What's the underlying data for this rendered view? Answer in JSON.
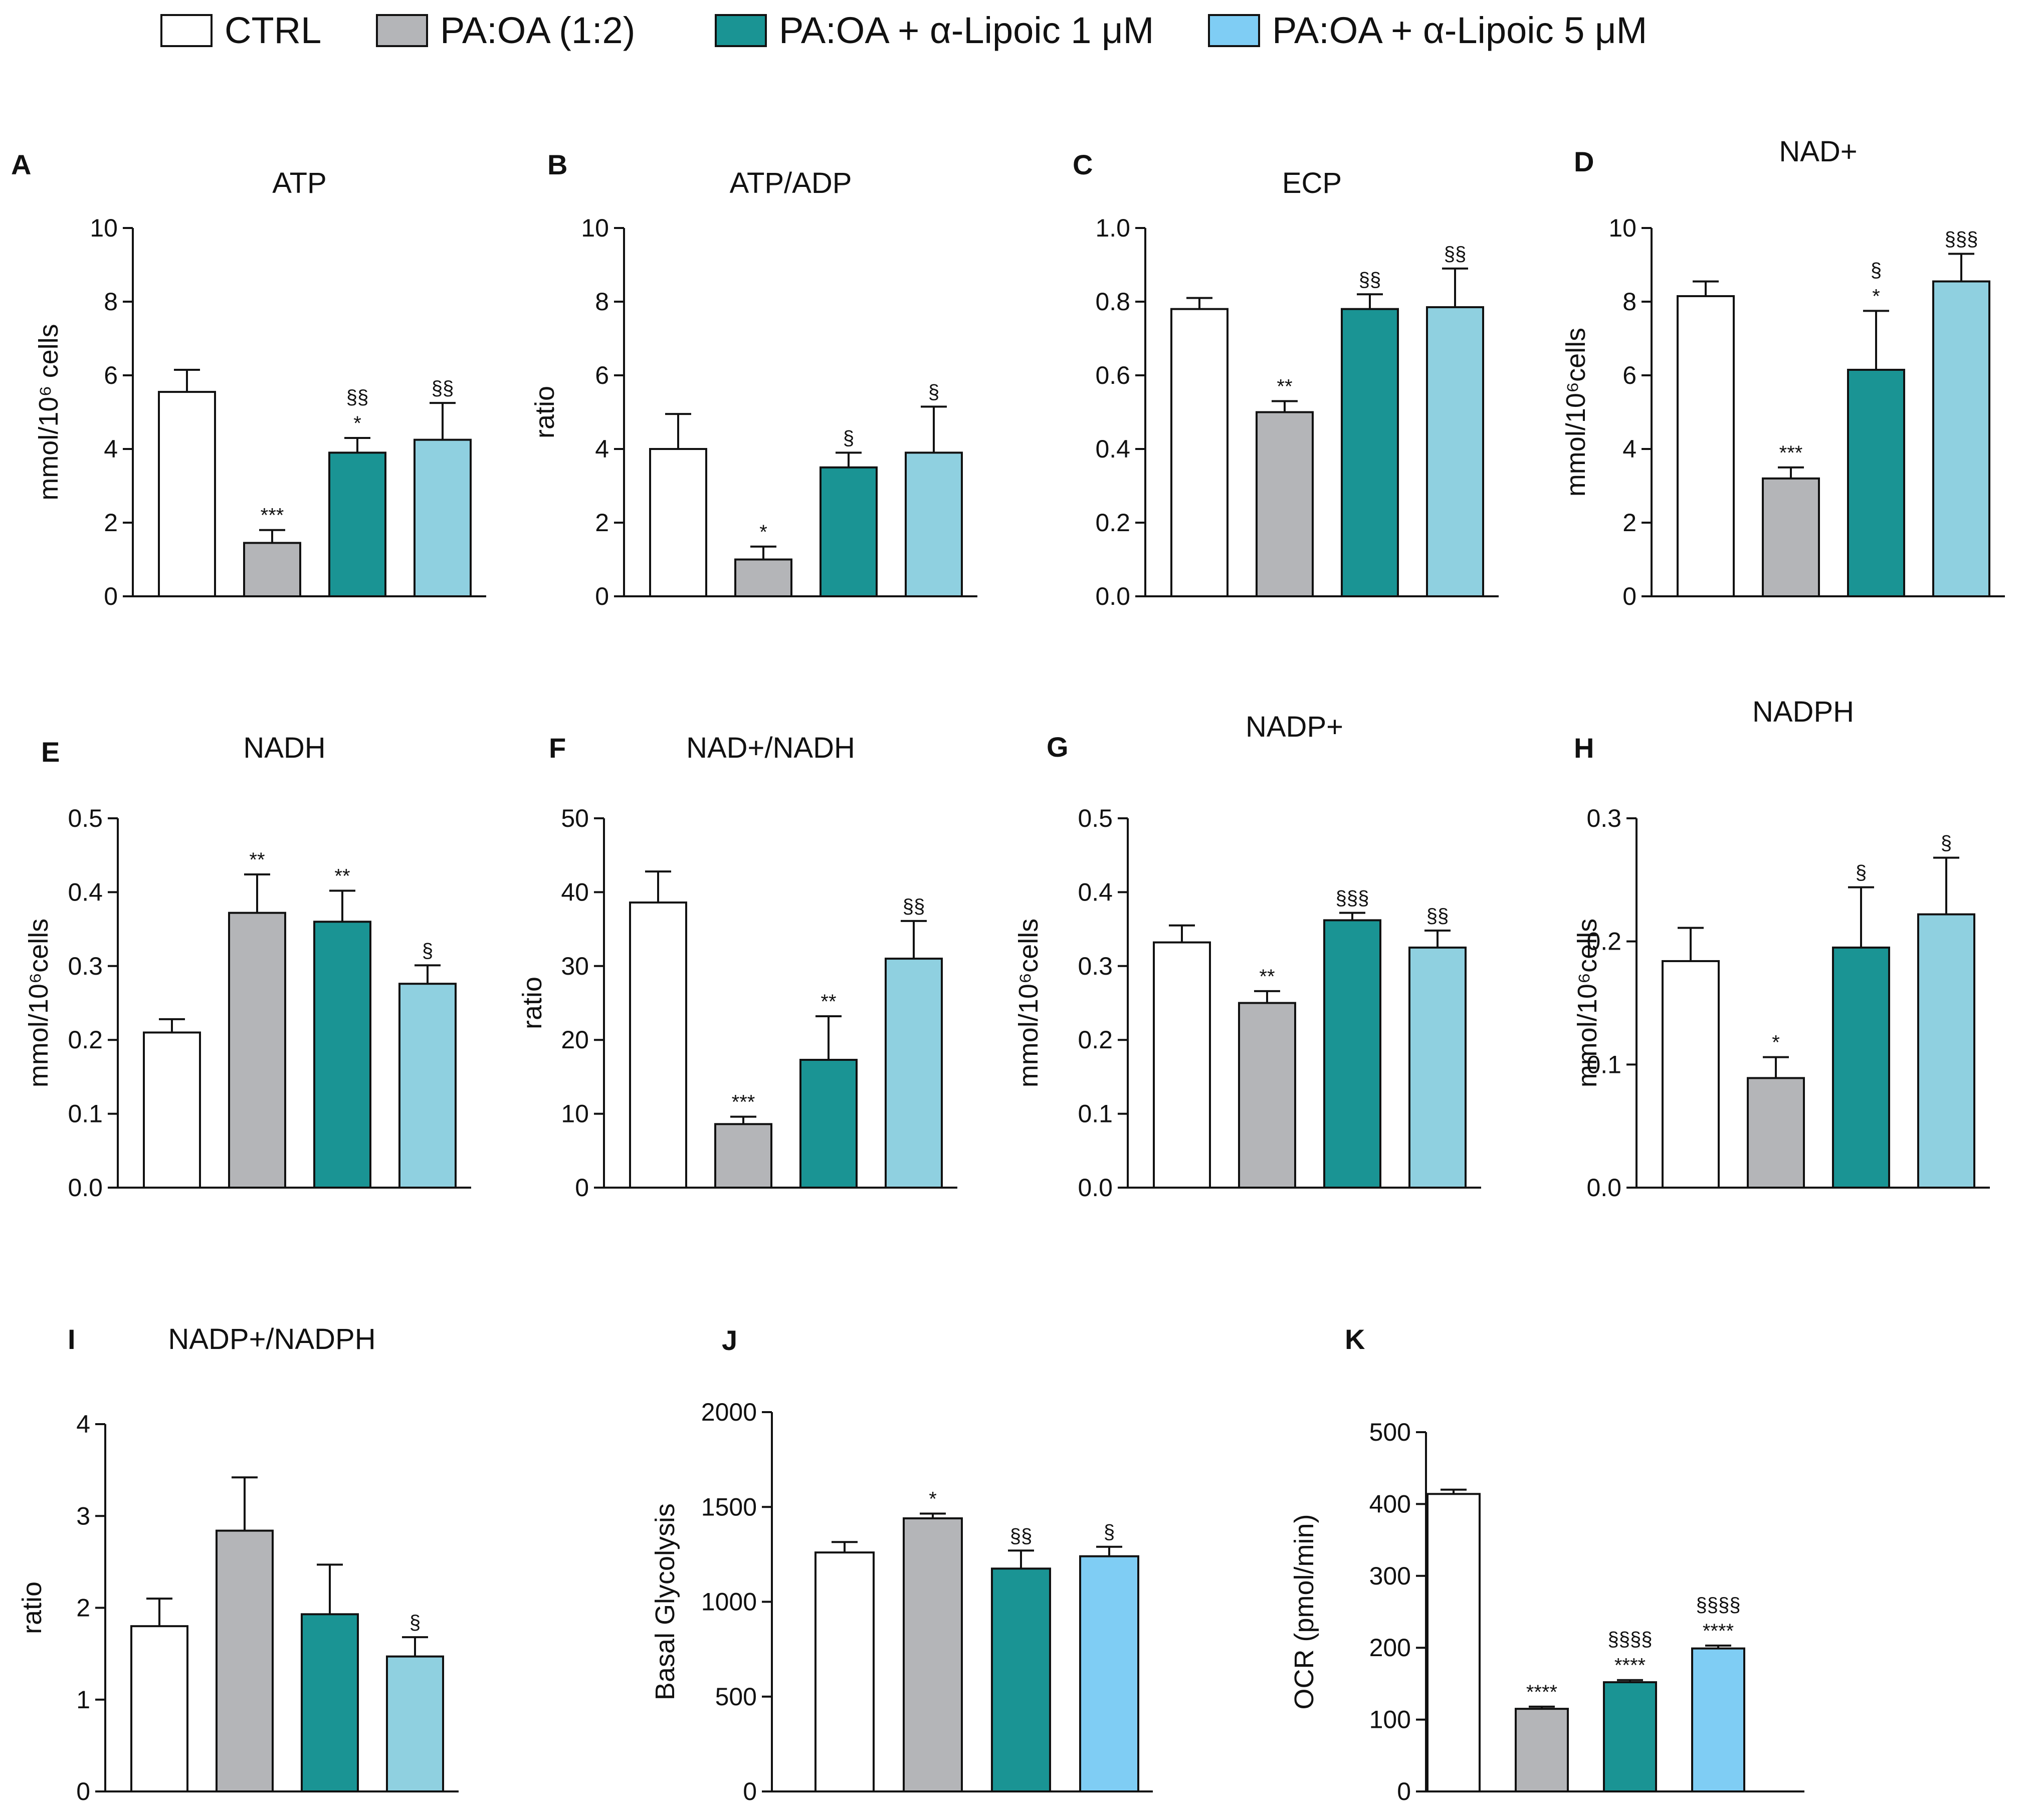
{
  "legend": [
    {
      "label": "CTRL",
      "color": "#ffffff"
    },
    {
      "label": "PA:OA (1:2)",
      "color": "#b4b5b8"
    },
    {
      "label": "PA:OA + α-Lipoic 1 μM",
      "color": "#1a9494"
    },
    {
      "label": "PA:OA + α-Lipoic 5 μM",
      "color": "#7fcdf4"
    }
  ],
  "chart_data": [
    {
      "panel": "A",
      "type": "bar",
      "title": "ATP",
      "ylabel": "mmol/10⁶ cells",
      "ylim": [
        0,
        10
      ],
      "yticks": [
        "0",
        "2",
        "4",
        "6",
        "8",
        "10"
      ],
      "categories": [
        "CTRL",
        "PA:OA (1:2)",
        "PA:OA + α-Lipoic 1 μM",
        "PA:OA + α-Lipoic 5 μM"
      ],
      "values": [
        5.55,
        1.45,
        3.9,
        4.25
      ],
      "errors": [
        0.6,
        0.35,
        0.4,
        1.0
      ],
      "colors": [
        "#ffffff",
        "#b4b5b8",
        "#1a9494",
        "#8fd0e0"
      ],
      "annotations": [
        [],
        [
          "***"
        ],
        [
          "*",
          "§§"
        ],
        [
          "§§"
        ]
      ]
    },
    {
      "panel": "B",
      "type": "bar",
      "title": "ATP/ADP",
      "ylabel": "ratio",
      "ylim": [
        0,
        10
      ],
      "yticks": [
        "0",
        "2",
        "4",
        "6",
        "8",
        "10"
      ],
      "categories": [
        "CTRL",
        "PA:OA (1:2)",
        "PA:OA + α-Lipoic 1 μM",
        "PA:OA + α-Lipoic 5 μM"
      ],
      "values": [
        4.0,
        1.0,
        3.5,
        3.9
      ],
      "errors": [
        0.95,
        0.35,
        0.4,
        1.25
      ],
      "colors": [
        "#ffffff",
        "#b4b5b8",
        "#1a9494",
        "#8fd0e0"
      ],
      "annotations": [
        [],
        [
          "*"
        ],
        [
          "§"
        ],
        [
          "§"
        ]
      ]
    },
    {
      "panel": "C",
      "type": "bar",
      "title": "ECP",
      "ylabel": "",
      "ylim": [
        0,
        1.0
      ],
      "yticks": [
        "0.0",
        "0.2",
        "0.4",
        "0.6",
        "0.8",
        "1.0"
      ],
      "categories": [
        "CTRL",
        "PA:OA (1:2)",
        "PA:OA + α-Lipoic 1 μM",
        "PA:OA + α-Lipoic 5 μM"
      ],
      "values": [
        0.78,
        0.5,
        0.78,
        0.785
      ],
      "errors": [
        0.03,
        0.03,
        0.04,
        0.105
      ],
      "colors": [
        "#ffffff",
        "#b4b5b8",
        "#1a9494",
        "#8fd0e0"
      ],
      "annotations": [
        [],
        [
          "**"
        ],
        [
          "§§"
        ],
        [
          "§§"
        ]
      ]
    },
    {
      "panel": "D",
      "type": "bar",
      "title": "NAD+",
      "ylabel": "mmol/10⁶cells",
      "ylim": [
        0,
        10
      ],
      "yticks": [
        "0",
        "2",
        "4",
        "6",
        "8",
        "10"
      ],
      "categories": [
        "CTRL",
        "PA:OA (1:2)",
        "PA:OA + α-Lipoic 1 μM",
        "PA:OA + α-Lipoic 5 μM"
      ],
      "values": [
        8.15,
        3.2,
        6.15,
        8.55
      ],
      "errors": [
        0.4,
        0.3,
        1.6,
        0.75
      ],
      "colors": [
        "#ffffff",
        "#b4b5b8",
        "#1a9494",
        "#8fd0e0"
      ],
      "annotations": [
        [],
        [
          "***"
        ],
        [
          "*",
          "§"
        ],
        [
          "§§§"
        ]
      ]
    },
    {
      "panel": "E",
      "type": "bar",
      "title": "NADH",
      "ylabel": "mmol/10⁶cells",
      "ylim": [
        0,
        0.5
      ],
      "yticks": [
        "0.0",
        "0.1",
        "0.2",
        "0.3",
        "0.4",
        "0.5"
      ],
      "categories": [
        "CTRL",
        "PA:OA (1:2)",
        "PA:OA + α-Lipoic 1 μM",
        "PA:OA + α-Lipoic 5 μM"
      ],
      "values": [
        0.21,
        0.372,
        0.36,
        0.276
      ],
      "errors": [
        0.018,
        0.052,
        0.042,
        0.025
      ],
      "colors": [
        "#ffffff",
        "#b4b5b8",
        "#1a9494",
        "#8fd0e0"
      ],
      "annotations": [
        [],
        [
          "**"
        ],
        [
          "**"
        ],
        [
          "§"
        ]
      ]
    },
    {
      "panel": "F",
      "type": "bar",
      "title": "NAD+/NADH",
      "ylabel": "ratio",
      "ylim": [
        0,
        50
      ],
      "yticks": [
        "0",
        "10",
        "20",
        "30",
        "40",
        "50"
      ],
      "categories": [
        "CTRL",
        "PA:OA (1:2)",
        "PA:OA + α-Lipoic 1 μM",
        "PA:OA + α-Lipoic 5 μM"
      ],
      "values": [
        38.6,
        8.6,
        17.3,
        31.0
      ],
      "errors": [
        4.2,
        1.0,
        5.9,
        5.1
      ],
      "colors": [
        "#ffffff",
        "#b4b5b8",
        "#1a9494",
        "#8fd0e0"
      ],
      "annotations": [
        [],
        [
          "***"
        ],
        [
          "**"
        ],
        [
          "§§"
        ]
      ]
    },
    {
      "panel": "G",
      "type": "bar",
      "title": "NADP+",
      "ylabel": "mmol/10⁶cells",
      "ylim": [
        0,
        0.5
      ],
      "yticks": [
        "0.0",
        "0.1",
        "0.2",
        "0.3",
        "0.4",
        "0.5"
      ],
      "categories": [
        "CTRL",
        "PA:OA (1:2)",
        "PA:OA + α-Lipoic 1 μM",
        "PA:OA + α-Lipoic 5 μM"
      ],
      "values": [
        0.332,
        0.25,
        0.362,
        0.325
      ],
      "errors": [
        0.023,
        0.016,
        0.01,
        0.023
      ],
      "colors": [
        "#ffffff",
        "#b4b5b8",
        "#1a9494",
        "#8fd0e0"
      ],
      "annotations": [
        [],
        [
          "**"
        ],
        [
          "§§§"
        ],
        [
          "§§"
        ]
      ]
    },
    {
      "panel": "H",
      "type": "bar",
      "title": "NADPH",
      "ylabel": "mmol/10⁶cells",
      "ylim": [
        0,
        0.3
      ],
      "yticks": [
        "0.0",
        "0.1",
        "0.2",
        "0.3"
      ],
      "categories": [
        "CTRL",
        "PA:OA (1:2)",
        "PA:OA + α-Lipoic 1 μM",
        "PA:OA + α-Lipoic 5 μM"
      ],
      "values": [
        0.184,
        0.089,
        0.195,
        0.222
      ],
      "errors": [
        0.027,
        0.017,
        0.049,
        0.046
      ],
      "colors": [
        "#ffffff",
        "#b4b5b8",
        "#1a9494",
        "#8fd0e0"
      ],
      "annotations": [
        [],
        [
          "*"
        ],
        [
          "§"
        ],
        [
          "§"
        ]
      ]
    },
    {
      "panel": "I",
      "type": "bar",
      "title": "NADP+/NADPH",
      "ylabel": "ratio",
      "ylim": [
        0,
        4
      ],
      "yticks": [
        "0",
        "1",
        "2",
        "3",
        "4"
      ],
      "categories": [
        "CTRL",
        "PA:OA (1:2)",
        "PA:OA + α-Lipoic 1 μM",
        "PA:OA + α-Lipoic 5 μM"
      ],
      "values": [
        1.8,
        2.84,
        1.93,
        1.47
      ],
      "errors": [
        0.3,
        0.58,
        0.54,
        0.21
      ],
      "colors": [
        "#ffffff",
        "#b4b5b8",
        "#1a9494",
        "#8fd0e0"
      ],
      "annotations": [
        [],
        [],
        [],
        [
          "§"
        ]
      ]
    },
    {
      "panel": "J",
      "type": "bar",
      "title": "",
      "ylabel": "Basal Glycolysis",
      "ylim": [
        0,
        2000
      ],
      "yticks": [
        "0",
        "500",
        "1000",
        "1500",
        "2000"
      ],
      "categories": [
        "CTRL",
        "PA:OA (1:2)",
        "PA:OA + α-Lipoic 1 μM",
        "PA:OA + α-Lipoic 5 μM"
      ],
      "values": [
        1260,
        1440,
        1175,
        1240
      ],
      "errors": [
        55,
        25,
        95,
        50
      ],
      "colors": [
        "#ffffff",
        "#b4b5b8",
        "#1a9494",
        "#7fcdf4"
      ],
      "annotations": [
        [],
        [
          "*"
        ],
        [
          "§§"
        ],
        [
          "§"
        ]
      ]
    },
    {
      "panel": "K",
      "type": "bar",
      "title": "",
      "ylabel": "OCR (pmol/min)",
      "ylim": [
        0,
        500
      ],
      "yticks": [
        "0",
        "100",
        "200",
        "300",
        "400",
        "500"
      ],
      "categories": [
        "CTRL",
        "PA:OA (1:2)",
        "PA:OA + α-Lipoic 1 μM",
        "PA:OA + α-Lipoic 5 μM"
      ],
      "values": [
        414,
        115,
        152,
        199
      ],
      "errors": [
        6,
        3,
        3,
        4
      ],
      "colors": [
        "#ffffff",
        "#b4b5b8",
        "#1a9494",
        "#7fcdf4"
      ],
      "annotations": [
        [],
        [
          "****"
        ],
        [
          "****",
          "§§§§"
        ],
        [
          "****",
          "§§§§"
        ]
      ]
    }
  ]
}
